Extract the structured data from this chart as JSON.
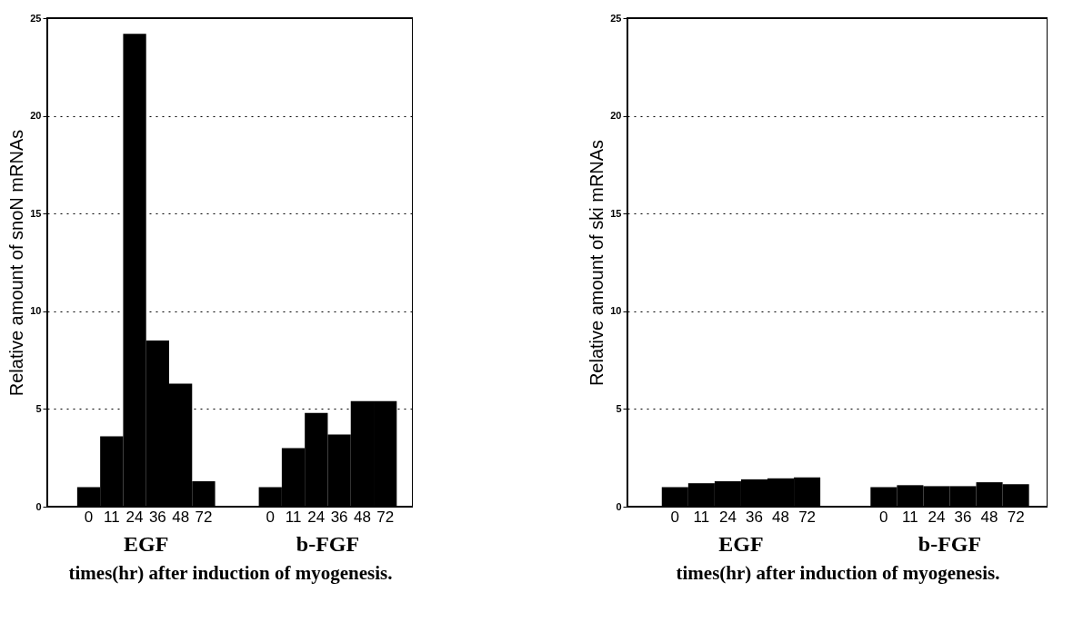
{
  "chart_data": [
    {
      "type": "bar",
      "categories": [
        "0",
        "11",
        "24",
        "36",
        "48",
        "72",
        "0",
        "11",
        "24",
        "36",
        "48",
        "72"
      ],
      "values": [
        1.0,
        3.6,
        24.2,
        8.5,
        6.3,
        1.3,
        1.0,
        3.0,
        4.8,
        3.7,
        5.4,
        5.4
      ],
      "color": "#000000",
      "ylim": [
        0,
        25
      ],
      "yticks": [
        0,
        5,
        10,
        15,
        20,
        25
      ],
      "grid": "y",
      "ylabel": "Relative amount of snoN mRNAs",
      "xlabel": "times(hr) after induction of myogenesis.",
      "annotations": [
        "EGF",
        "b-FGF"
      ]
    },
    {
      "type": "bar",
      "categories": [
        "0",
        "11",
        "24",
        "36",
        "48",
        "72",
        "0",
        "11",
        "24",
        "36",
        "48",
        "72"
      ],
      "values": [
        1.0,
        1.2,
        1.3,
        1.4,
        1.45,
        1.5,
        1.0,
        1.1,
        1.05,
        1.05,
        1.25,
        1.15
      ],
      "color": "#000000",
      "ylim": [
        0,
        25
      ],
      "yticks": [
        0,
        5,
        10,
        15,
        20,
        25
      ],
      "grid": "y",
      "ylabel": "Relative amount of ski mRNAs",
      "xlabel": "times(hr) after induction of myogenesis.",
      "annotations": [
        "EGF",
        "b-FGF"
      ]
    }
  ]
}
